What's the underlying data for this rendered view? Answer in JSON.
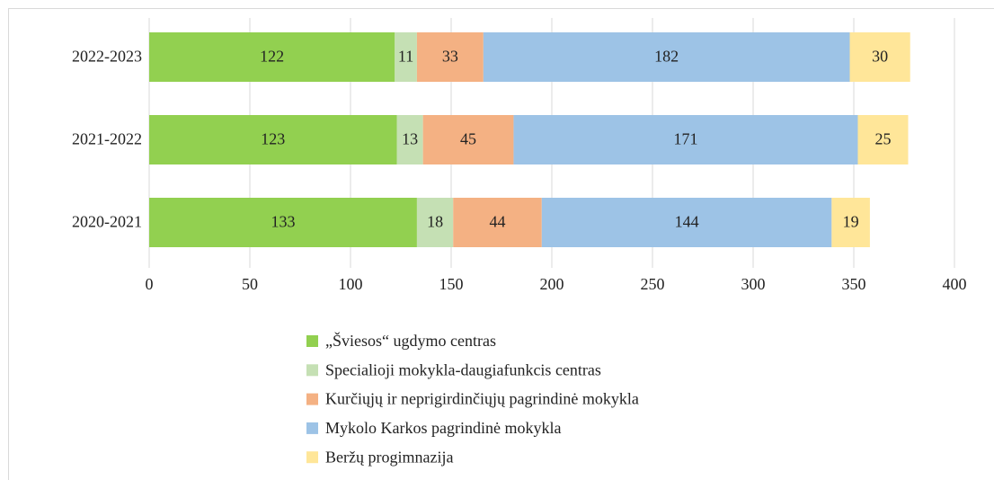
{
  "chart_data": {
    "type": "stacked_bar_horizontal",
    "categories": [
      "2022-2023",
      "2021-2022",
      "2020-2021"
    ],
    "series": [
      {
        "name": "„Šviesos“ ugdymo centras",
        "color": "#92d050",
        "values": [
          122,
          123,
          133
        ]
      },
      {
        "name": "Specialioji mokykla-daugiafunkcis centras",
        "color": "#c5e0b4",
        "values": [
          11,
          13,
          18
        ]
      },
      {
        "name": "Kurčiųjų ir neprigirdinčiųjų pagrindinė mokykla",
        "color": "#f4b183",
        "values": [
          33,
          45,
          44
        ]
      },
      {
        "name": "Mykolo Karkos pagrindinė mokykla",
        "color": "#9dc3e6",
        "values": [
          182,
          171,
          144
        ]
      },
      {
        "name": "Beržų progimnazija",
        "color": "#ffe699",
        "values": [
          30,
          25,
          19
        ]
      }
    ],
    "xlim": [
      0,
      400
    ],
    "xticks": [
      0,
      50,
      100,
      150,
      200,
      250,
      300,
      350,
      400
    ],
    "grid": true,
    "legend": "bottom"
  }
}
